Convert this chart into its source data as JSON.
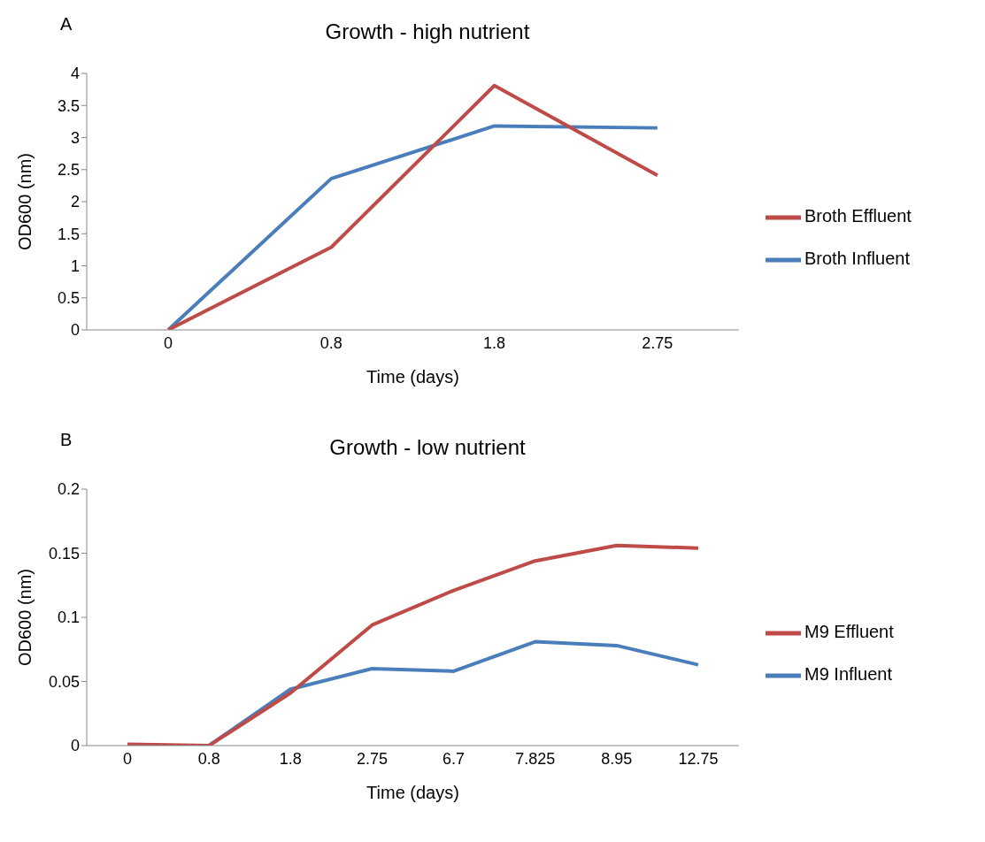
{
  "chart_data": [
    {
      "type": "line",
      "title": "Growth - high nutrient",
      "xlabel": "Time (days)",
      "ylabel": "OD600 (nm)",
      "annotations": [
        "A"
      ],
      "categories": [
        "0",
        "0.8",
        "1.8",
        "2.75"
      ],
      "series": [
        {
          "name": "Broth Influent",
          "color": "#4a7ebb",
          "values": [
            0,
            2.36,
            3.18,
            3.15
          ]
        },
        {
          "name": "Broth Effluent",
          "color": "#be4b48",
          "values": [
            0,
            1.29,
            3.81,
            2.41
          ]
        }
      ],
      "ylim": [
        0,
        4
      ],
      "yticks": [
        0,
        0.5,
        1,
        1.5,
        2,
        2.5,
        3,
        3.5,
        4
      ],
      "grid": false,
      "legend": "right",
      "marker": "none",
      "line_style": "solid"
    },
    {
      "type": "line",
      "title": "Growth - low nutrient",
      "xlabel": "Time (days)",
      "ylabel": "OD600 (nm)",
      "annotations": [
        "B"
      ],
      "categories": [
        "0",
        "0.8",
        "1.8",
        "2.75",
        "6.7",
        "7.825",
        "8.95",
        "12.75"
      ],
      "series": [
        {
          "name": "M9 Influent",
          "color": "#4a7ebb",
          "values": [
            0,
            0,
            0.044,
            0.06,
            0.058,
            0.081,
            0.078,
            0.063
          ]
        },
        {
          "name": "M9 Effluent",
          "color": "#be4b48",
          "values": [
            0.001,
            0,
            0.041,
            0.094,
            0.121,
            0.144,
            0.156,
            0.154
          ]
        }
      ],
      "ylim": [
        0,
        0.2
      ],
      "yticks": [
        0,
        0.05,
        0.1,
        0.15,
        0.2
      ],
      "grid": false,
      "legend": "right",
      "marker": "none",
      "line_style": "solid"
    }
  ]
}
